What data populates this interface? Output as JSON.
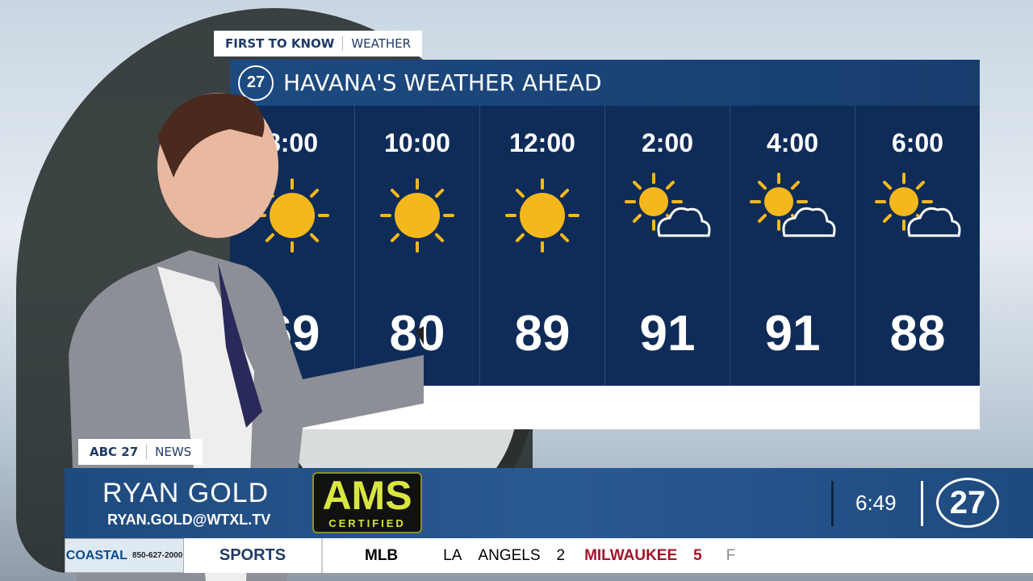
{
  "header_tag": {
    "left": "FIRST TO KNOW",
    "right": "WEATHER"
  },
  "panel": {
    "logo": "abc27",
    "title": "HAVANA'S WEATHER AHEAD"
  },
  "forecast": [
    {
      "time": "8:00",
      "icon": "sun-icon",
      "temp": "69"
    },
    {
      "time": "10:00",
      "icon": "sun-icon",
      "temp": "80"
    },
    {
      "time": "12:00",
      "icon": "sun-icon",
      "temp": "89"
    },
    {
      "time": "2:00",
      "icon": "partly-cloudy-icon",
      "temp": "91"
    },
    {
      "time": "4:00",
      "icon": "partly-cloudy-icon",
      "temp": "91"
    },
    {
      "time": "6:00",
      "icon": "partly-cloudy-icon",
      "temp": "88"
    }
  ],
  "lower_third": {
    "tag_left": "ABC 27",
    "tag_right": "NEWS",
    "name": "RYAN GOLD",
    "email": "RYAN.GOLD@WTXL.TV",
    "badge_main": "AMS",
    "badge_sub": "CERTIFIED",
    "time": "6:49",
    "logo": "abc27"
  },
  "ticker": {
    "sponsor": "COASTAL",
    "sponsor_phone": "850-627-2000",
    "section": "SPORTS",
    "league": "MLB",
    "team1_city": "LA",
    "team1": "ANGELS",
    "score1": "2",
    "team2": "MILWAUKEE",
    "score2": "5",
    "status": "F"
  },
  "colors": {
    "panel": "#0f2c58",
    "band": "#2a5a92",
    "winner": "#a4122a",
    "sun": "#f5b81c"
  }
}
